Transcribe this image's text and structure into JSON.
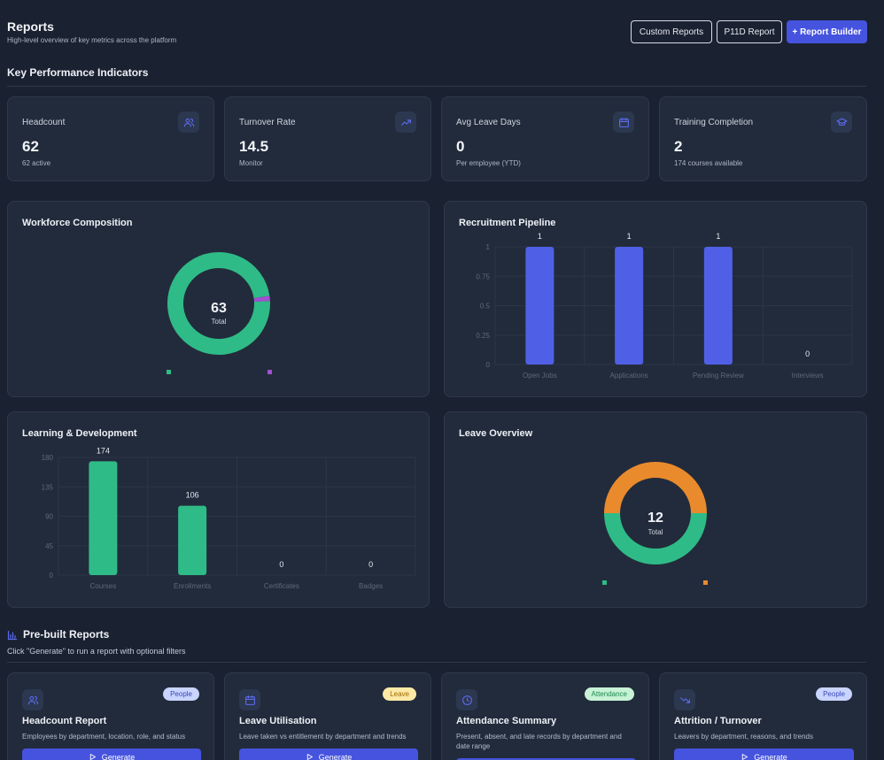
{
  "header": {
    "title": "Reports",
    "subtitle": "High-level overview of key metrics across the platform",
    "custom_reports_label": "Custom Reports",
    "p11d_label": "P11D Report",
    "builder_label": "+ Report Builder"
  },
  "kpi": {
    "section_title": "Key Performance Indicators",
    "cards": [
      {
        "label": "Headcount",
        "value": "62",
        "sub": "62 active",
        "icon": "users-icon"
      },
      {
        "label": "Turnover Rate",
        "value": "14.5",
        "sub": "Monitor",
        "icon": "trending-up-icon"
      },
      {
        "label": "Avg Leave Days",
        "value": "0",
        "sub": "Per employee (YTD)",
        "icon": "calendar-icon"
      },
      {
        "label": "Training Completion",
        "value": "2",
        "sub": "174 courses available",
        "icon": "graduation-cap-icon"
      }
    ]
  },
  "workforce": {
    "title": "Workforce Composition",
    "center_value": "63",
    "center_label": "Total",
    "colors": {
      "primary": "#2fbb87",
      "secondary": "#a24fd1"
    },
    "chart_data": {
      "type": "pie",
      "style": "donut",
      "total": 63,
      "slices": [
        {
          "value": 62,
          "color": "#2fbb87"
        },
        {
          "value": 1,
          "color": "#a24fd1"
        }
      ]
    }
  },
  "recruitment": {
    "title": "Recruitment Pipeline",
    "chart_data": {
      "type": "bar",
      "categories": [
        "Open Jobs",
        "Applications",
        "Pending Review",
        "Interviews"
      ],
      "values": [
        1,
        1,
        1,
        0
      ],
      "value_labels": [
        "1",
        "1",
        "1",
        "0"
      ],
      "yticks": [
        "0",
        "0.25",
        "0.5",
        "0.75",
        "1"
      ],
      "ylim": [
        0,
        1
      ],
      "color": "#5060e6",
      "grid": true
    }
  },
  "learning": {
    "title": "Learning & Development",
    "chart_data": {
      "type": "bar",
      "categories": [
        "Courses",
        "Enrollments",
        "Certificates",
        "Badges"
      ],
      "values": [
        174,
        106,
        0,
        0
      ],
      "value_labels": [
        "174",
        "106",
        "0",
        "0"
      ],
      "yticks": [
        "0",
        "45",
        "90",
        "135",
        "180"
      ],
      "ylim": [
        0,
        180
      ],
      "color": "#2fbb87",
      "grid": true
    }
  },
  "leave": {
    "title": "Leave Overview",
    "center_value": "12",
    "center_label": "Total",
    "chart_data": {
      "type": "pie",
      "style": "donut",
      "total": 12,
      "slices": [
        {
          "value": 6,
          "color": "#2fbb87"
        },
        {
          "value": 6,
          "color": "#e98b2d"
        }
      ]
    }
  },
  "prebuilt": {
    "section_title": "Pre-built Reports",
    "subtitle": "Click \"Generate\" to run a report with optional filters",
    "generate_label": "Generate",
    "cards": [
      {
        "badge": "People",
        "badge_color": "#c9d4ff",
        "badge_text_color": "#3a47b6",
        "title": "Headcount Report",
        "desc": "Employees by department, location, role, and status",
        "icon": "users-icon"
      },
      {
        "badge": "Leave",
        "badge_color": "#fde9a6",
        "badge_text_color": "#a06a00",
        "title": "Leave Utilisation",
        "desc": "Leave taken vs entitlement by department and trends",
        "icon": "calendar-icon"
      },
      {
        "badge": "Attendance",
        "badge_color": "#c7f2d6",
        "badge_text_color": "#1d8a4c",
        "title": "Attendance Summary",
        "desc": "Present, absent, and late records by department and date range",
        "icon": "clock-icon"
      },
      {
        "badge": "People",
        "badge_color": "#c9d4ff",
        "badge_text_color": "#3a47b6",
        "title": "Attrition / Turnover",
        "desc": "Leavers by department, reasons, and trends",
        "icon": "trending-down-icon"
      }
    ]
  }
}
